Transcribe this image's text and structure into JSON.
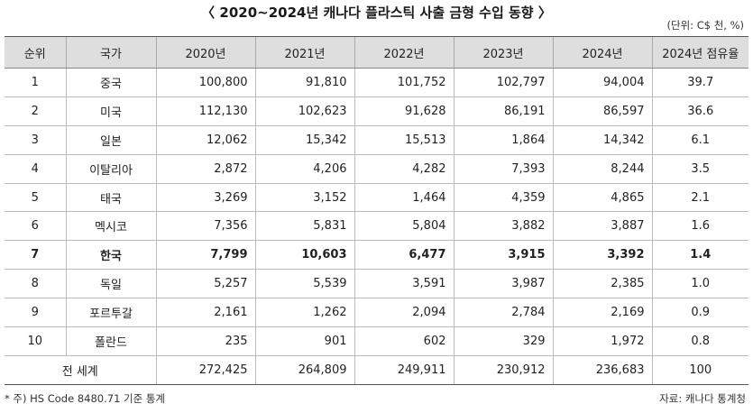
{
  "title": "〈 2020~2024년 캐나다 플라스틱 사출 금형 수입 동향 〉",
  "unit": "(단위: C$ 천, %)",
  "columns": [
    "순위",
    "국가",
    "2020년",
    "2021년",
    "2022년",
    "2023년",
    "2024년",
    "2024년 점유율"
  ],
  "rows": [
    {
      "rank": "1",
      "country": "중국",
      "v2020": "100,800",
      "v2021": "91,810",
      "v2022": "101,752",
      "v2023": "102,797",
      "v2024": "94,004",
      "share": "39.7"
    },
    {
      "rank": "2",
      "country": "미국",
      "v2020": "112,130",
      "v2021": "102,623",
      "v2022": "91,628",
      "v2023": "86,191",
      "v2024": "86,597",
      "share": "36.6"
    },
    {
      "rank": "3",
      "country": "일본",
      "v2020": "12,062",
      "v2021": "15,342",
      "v2022": "15,513",
      "v2023": "1,864",
      "v2024": "14,342",
      "share": "6.1"
    },
    {
      "rank": "4",
      "country": "이탈리아",
      "v2020": "2,872",
      "v2021": "4,206",
      "v2022": "4,282",
      "v2023": "7,393",
      "v2024": "8,244",
      "share": "3.5"
    },
    {
      "rank": "5",
      "country": "태국",
      "v2020": "3,269",
      "v2021": "3,152",
      "v2022": "1,464",
      "v2023": "4,359",
      "v2024": "4,865",
      "share": "2.1"
    },
    {
      "rank": "6",
      "country": "멕시코",
      "v2020": "7,356",
      "v2021": "5,831",
      "v2022": "5,804",
      "v2023": "3,882",
      "v2024": "3,887",
      "share": "1.6"
    },
    {
      "rank": "7",
      "country": "한국",
      "v2020": "7,799",
      "v2021": "10,603",
      "v2022": "6,477",
      "v2023": "3,915",
      "v2024": "3,392",
      "share": "1.4"
    },
    {
      "rank": "8",
      "country": "독일",
      "v2020": "5,257",
      "v2021": "5,539",
      "v2022": "3,591",
      "v2023": "3,987",
      "v2024": "2,385",
      "share": "1.0"
    },
    {
      "rank": "9",
      "country": "포르투갈",
      "v2020": "2,161",
      "v2021": "1,262",
      "v2022": "2,094",
      "v2023": "2,784",
      "v2024": "2,169",
      "share": "0.9"
    },
    {
      "rank": "10",
      "country": "폴란드",
      "v2020": "235",
      "v2021": "901",
      "v2022": "602",
      "v2023": "329",
      "v2024": "1,972",
      "share": "0.8"
    }
  ],
  "total": {
    "label": "전 세계",
    "v2020": "272,425",
    "v2021": "264,809",
    "v2022": "249,911",
    "v2023": "230,912",
    "v2024": "236,683",
    "share": "100"
  },
  "note": "* 주) HS Code 8480.71 기준 통계",
  "source": "자료: 캐나다 통계청",
  "highlight_rank": "7"
}
